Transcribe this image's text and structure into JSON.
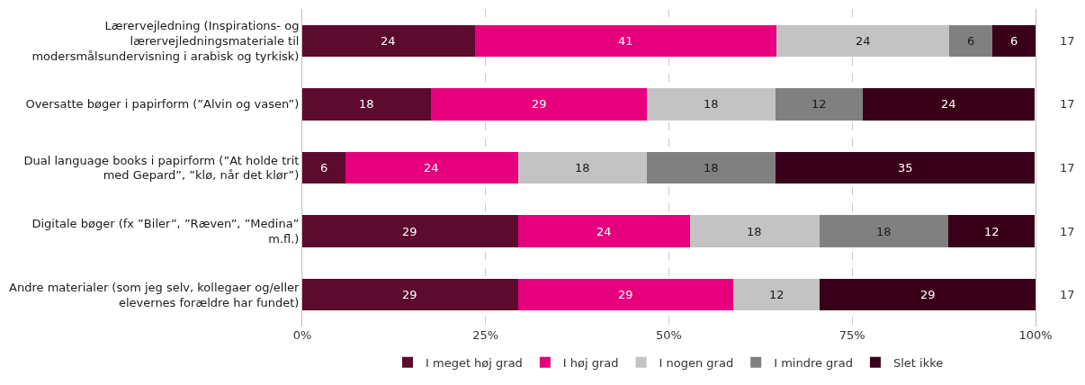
{
  "chart_data": {
    "type": "bar",
    "orientation": "horizontal",
    "stacked": true,
    "categories": [
      "Lærervejledning (Inspirations- og\nlærervejledningsmateriale til\nmodersmålsundervisning i arabisk og tyrkisk)",
      "Oversatte bøger i papirform (”Alvin og vasen”)",
      "Dual language books i papirform (”At holde trit\nmed Gepard”, ”klø, når det klør”)",
      "Digitale bøger (fx ”Biler”, ”Ræven”, ”Medina”\nm.fl.)",
      "Andre materialer (som jeg selv, kollegaer og/eller\nelevernes forældre har fundet)"
    ],
    "series": [
      {
        "name": "I meget høj grad",
        "color": "#5c0a2e",
        "values": [
          23.5,
          17.6,
          5.9,
          29.4,
          29.4
        ],
        "value_labels": [
          "24",
          "18",
          "6",
          "29",
          "29"
        ]
      },
      {
        "name": "I høj grad",
        "color": "#e6007e",
        "values": [
          41.2,
          29.4,
          23.5,
          23.5,
          29.4
        ],
        "value_labels": [
          "41",
          "29",
          "24",
          "24",
          "29"
        ]
      },
      {
        "name": "I nogen grad",
        "color": "#c3c3c3",
        "values": [
          23.5,
          17.6,
          17.6,
          17.6,
          11.8
        ],
        "value_labels": [
          "24",
          "18",
          "18",
          "18",
          "12"
        ]
      },
      {
        "name": "I mindre grad",
        "color": "#808080",
        "values": [
          5.9,
          11.8,
          17.6,
          17.6,
          0
        ],
        "value_labels": [
          "6",
          "12",
          "18",
          "18",
          null
        ]
      },
      {
        "name": "Slet ikke",
        "color": "#3a0019",
        "values": [
          5.9,
          23.5,
          35.3,
          11.8,
          29.4
        ],
        "value_labels": [
          "6",
          "24",
          "35",
          "12",
          "29"
        ]
      }
    ],
    "xlim": [
      0,
      100
    ],
    "xticks": [
      {
        "value": 0,
        "label": "0%"
      },
      {
        "value": 25,
        "label": "25%"
      },
      {
        "value": 50,
        "label": "50%"
      },
      {
        "value": 75,
        "label": "75%"
      },
      {
        "value": 100,
        "label": "100%"
      }
    ],
    "annotations": [
      "17",
      "17",
      "17",
      "17",
      "17"
    ],
    "grid": "x",
    "legend": "bottom"
  }
}
